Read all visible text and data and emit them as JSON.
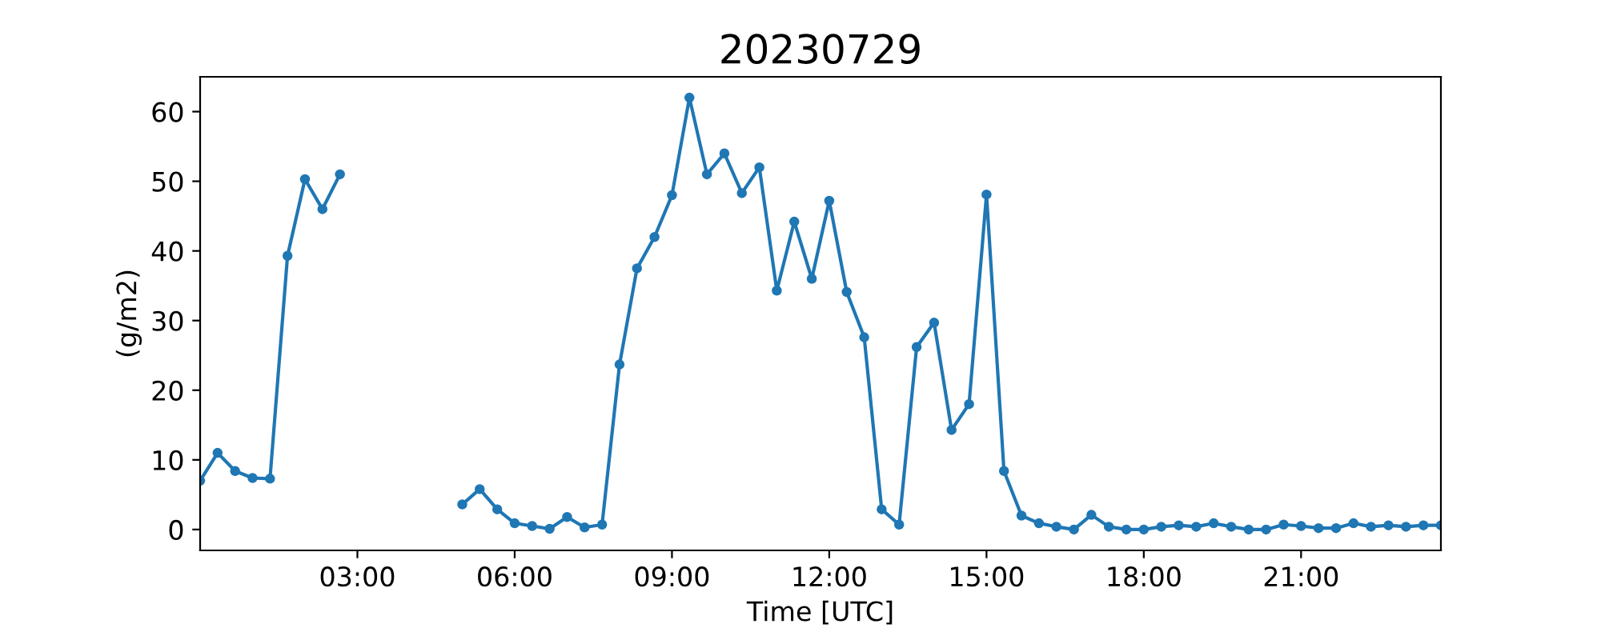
{
  "chart_data": {
    "type": "line",
    "title": "20230729",
    "xlabel": "Time [UTC]",
    "ylabel": "(g/m2)",
    "x": [
      0,
      0.333,
      0.667,
      1,
      1.333,
      1.667,
      2,
      2.333,
      2.667,
      3,
      3.333,
      3.667,
      4,
      4.333,
      4.667,
      5,
      5.333,
      5.667,
      6,
      6.333,
      6.667,
      7,
      7.333,
      7.667,
      8,
      8.333,
      8.667,
      9,
      9.333,
      9.667,
      10,
      10.333,
      10.667,
      11,
      11.333,
      11.667,
      12,
      12.333,
      12.667,
      13,
      13.333,
      13.667,
      14,
      14.333,
      14.667,
      15,
      15.333,
      15.667,
      16,
      16.333,
      16.667,
      17,
      17.333,
      17.667,
      18,
      18.333,
      18.667,
      19,
      19.333,
      19.667,
      20,
      20.333,
      20.667,
      21,
      21.333,
      21.667,
      22,
      22.333,
      22.667,
      23,
      23.333,
      23.667
    ],
    "series": [
      {
        "color": "#1f77b4",
        "values": [
          7,
          11,
          8.4,
          7.4,
          7.3,
          39.3,
          50.3,
          46,
          51,
          null,
          null,
          null,
          null,
          null,
          null,
          3.6,
          5.8,
          2.9,
          0.9,
          0.5,
          0.1,
          1.8,
          0.3,
          0.7,
          23.7,
          37.5,
          42,
          48,
          62,
          51,
          54,
          48.3,
          52,
          34.3,
          44.2,
          36,
          47.2,
          34.1,
          27.6,
          2.9,
          0.7,
          26.2,
          29.7,
          14.3,
          18,
          48.1,
          8.4,
          2,
          0.9,
          0.4,
          0,
          2.1,
          0.4,
          0,
          0,
          0.4,
          0.6,
          0.4,
          0.9,
          0.4,
          0,
          0,
          0.7,
          0.5,
          0.2,
          0.2,
          0.9,
          0.4,
          0.6,
          0.4,
          0.6,
          0.6
        ]
      }
    ],
    "xlim": [
      0,
      23.667
    ],
    "ylim": [
      -3,
      65
    ],
    "xticks": [
      {
        "value": 3,
        "label": "03:00"
      },
      {
        "value": 6,
        "label": "06:00"
      },
      {
        "value": 9,
        "label": "09:00"
      },
      {
        "value": 12,
        "label": "12:00"
      },
      {
        "value": 15,
        "label": "15:00"
      },
      {
        "value": 18,
        "label": "18:00"
      },
      {
        "value": 21,
        "label": "21:00"
      }
    ],
    "yticks": [
      0,
      10,
      20,
      30,
      40,
      50,
      60
    ],
    "marker": "circle",
    "line_style": "solid",
    "grid": false
  }
}
